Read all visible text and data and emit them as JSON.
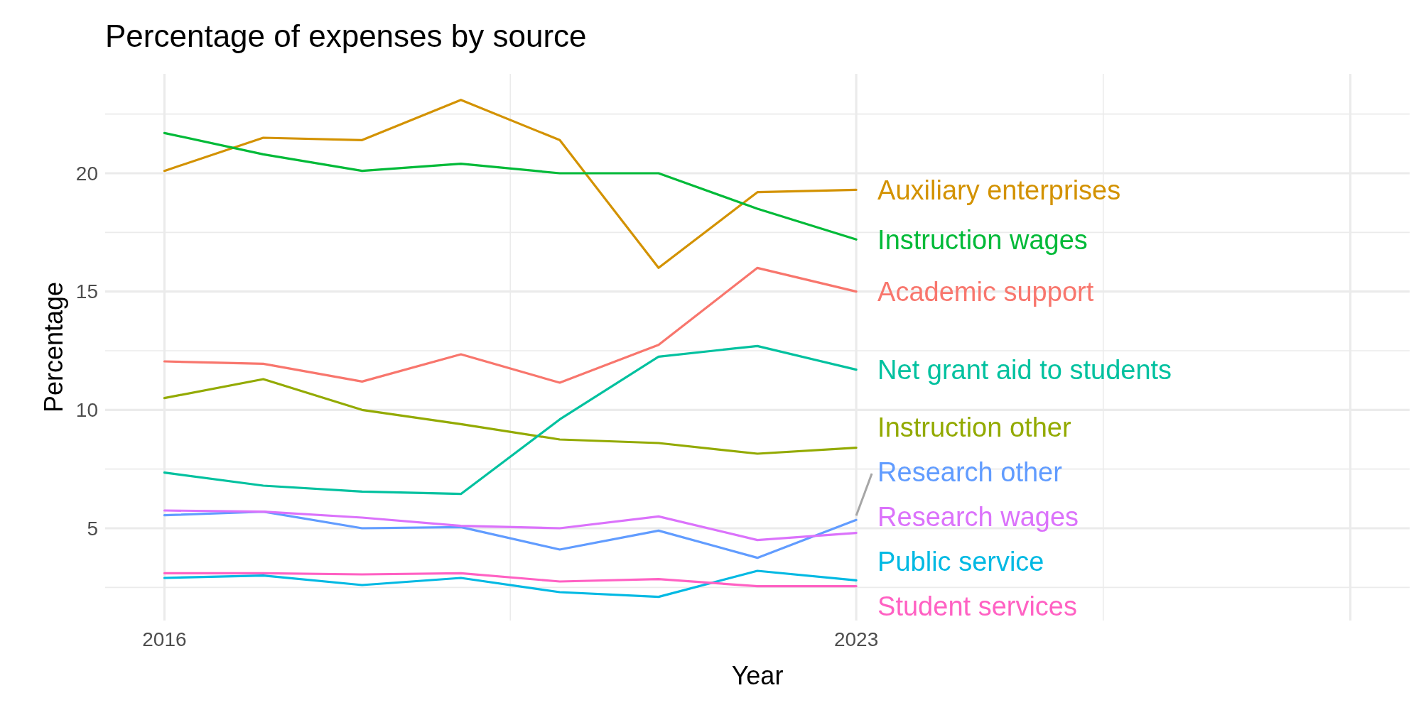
{
  "chart_data": {
    "type": "line",
    "title": "Percentage of expenses by source",
    "xlabel": "Year",
    "ylabel": "Percentage",
    "x": [
      2016,
      2017,
      2018,
      2019,
      2020,
      2021,
      2022,
      2023
    ],
    "xlim": [
      2015.4,
      2028.6
    ],
    "xticks": [
      2016,
      2023,
      {
        "value": 2028,
        "label": null
      }
    ],
    "ylim": [
      1.1,
      24.2
    ],
    "yticks": [
      5,
      10,
      15,
      20
    ],
    "grid": true,
    "line_style": "solid",
    "series": [
      {
        "name": "Academic support",
        "color": "#f8766d",
        "values": [
          12.05,
          11.95,
          11.2,
          12.35,
          11.15,
          12.75,
          16.0,
          15.0
        ]
      },
      {
        "name": "Auxiliary enterprises",
        "color": "#d39200",
        "values": [
          20.1,
          21.5,
          21.4,
          23.1,
          21.4,
          16.0,
          19.2,
          19.3
        ]
      },
      {
        "name": "Instruction other",
        "color": "#93aa00",
        "values": [
          10.5,
          11.3,
          10.0,
          9.4,
          8.75,
          8.6,
          8.15,
          8.4
        ]
      },
      {
        "name": "Instruction wages",
        "color": "#00ba38",
        "values": [
          21.7,
          20.8,
          20.1,
          20.4,
          20.0,
          20.0,
          18.5,
          17.2
        ]
      },
      {
        "name": "Net grant aid to students",
        "color": "#00c19f",
        "values": [
          7.35,
          6.8,
          6.55,
          6.45,
          9.6,
          12.25,
          12.7,
          11.7
        ]
      },
      {
        "name": "Public service",
        "color": "#00b9e3",
        "values": [
          2.9,
          3.0,
          2.6,
          2.9,
          2.3,
          2.1,
          3.2,
          2.8
        ]
      },
      {
        "name": "Research other",
        "color": "#619cff",
        "values": [
          5.55,
          5.7,
          5.0,
          5.05,
          4.1,
          4.9,
          3.75,
          5.35
        ]
      },
      {
        "name": "Research wages",
        "color": "#db72fb",
        "values": [
          5.75,
          5.7,
          5.45,
          5.1,
          5.0,
          5.5,
          4.5,
          4.8
        ]
      },
      {
        "name": "Student services",
        "color": "#ff61c3",
        "values": [
          3.1,
          3.1,
          3.05,
          3.1,
          2.75,
          2.85,
          2.55,
          2.55
        ]
      }
    ]
  }
}
